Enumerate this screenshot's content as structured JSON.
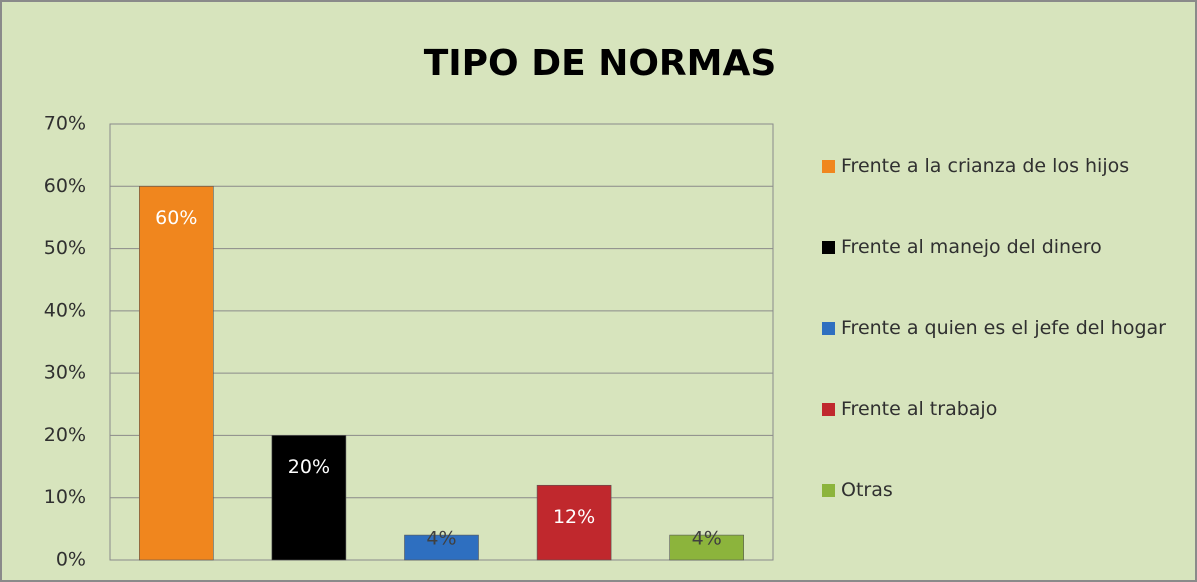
{
  "chart_data": {
    "type": "bar",
    "title": "TIPO DE NORMAS",
    "categories": [
      "Frente a la crianza de los hijos",
      "Frente al manejo del dinero",
      "Frente a quien es el jefe del hogar",
      "Frente al trabajo",
      "Otras"
    ],
    "values": [
      60,
      20,
      4,
      12,
      4
    ],
    "value_labels": [
      "60%",
      "20%",
      "4%",
      "12%",
      "4%"
    ],
    "colors": [
      "#f0861e",
      "#000000",
      "#2e6fc0",
      "#c0282d",
      "#8cb43c"
    ],
    "ylim": [
      0,
      70
    ],
    "yticks": [
      {
        "value": 0,
        "label": "0%"
      },
      {
        "value": 10,
        "label": "10%"
      },
      {
        "value": 20,
        "label": "20%"
      },
      {
        "value": 30,
        "label": "30%"
      },
      {
        "value": 40,
        "label": "40%"
      },
      {
        "value": 50,
        "label": "50%"
      },
      {
        "value": 60,
        "label": "60%"
      },
      {
        "value": 70,
        "label": "70%"
      }
    ],
    "grid": true,
    "legend": "right"
  }
}
